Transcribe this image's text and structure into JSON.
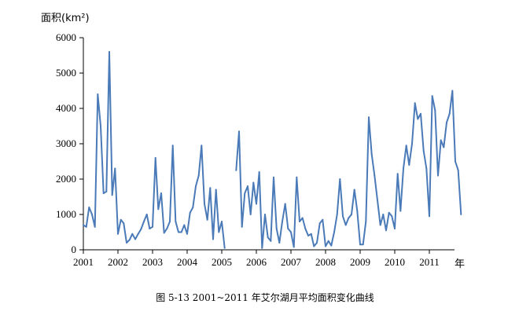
{
  "figure": {
    "caption": "图 5-13  2001~2011 年艾尔湖月平均面积变化曲线"
  },
  "chart_data": {
    "type": "line",
    "title": "",
    "ylabel": "面积(km²)",
    "xunit": "年",
    "ylim": [
      0,
      6000
    ],
    "xlim": [
      2001,
      2012
    ],
    "yticks": [
      0,
      1000,
      2000,
      3000,
      4000,
      5000,
      6000
    ],
    "xticks": [
      2001,
      2002,
      2003,
      2004,
      2005,
      2006,
      2007,
      2008,
      2009,
      2010,
      2011
    ],
    "grid": false,
    "legend": "none",
    "line_color": "#4a7ab8",
    "series": [
      {
        "segments": [
          [
            [
              2001.0,
              700
            ],
            [
              2001.083,
              650
            ],
            [
              2001.167,
              1200
            ],
            [
              2001.25,
              1000
            ],
            [
              2001.333,
              650
            ],
            [
              2001.417,
              4400
            ],
            [
              2001.5,
              3500
            ],
            [
              2001.583,
              1600
            ],
            [
              2001.667,
              1650
            ],
            [
              2001.75,
              5600
            ],
            [
              2001.833,
              1550
            ],
            [
              2001.917,
              2300
            ],
            [
              2002.0,
              450
            ],
            [
              2002.083,
              850
            ],
            [
              2002.167,
              750
            ],
            [
              2002.25,
              200
            ],
            [
              2002.333,
              280
            ],
            [
              2002.417,
              450
            ],
            [
              2002.5,
              300
            ],
            [
              2002.583,
              450
            ],
            [
              2002.667,
              580
            ],
            [
              2002.75,
              800
            ],
            [
              2002.833,
              1000
            ],
            [
              2002.917,
              600
            ],
            [
              2003.0,
              650
            ],
            [
              2003.083,
              2600
            ],
            [
              2003.167,
              1150
            ],
            [
              2003.25,
              1600
            ],
            [
              2003.333,
              480
            ],
            [
              2003.417,
              600
            ],
            [
              2003.5,
              800
            ],
            [
              2003.583,
              2950
            ],
            [
              2003.667,
              800
            ],
            [
              2003.75,
              500
            ],
            [
              2003.833,
              500
            ],
            [
              2003.917,
              700
            ],
            [
              2004.0,
              450
            ],
            [
              2004.083,
              1050
            ],
            [
              2004.167,
              1200
            ],
            [
              2004.25,
              1800
            ],
            [
              2004.333,
              2100
            ],
            [
              2004.417,
              2950
            ],
            [
              2004.5,
              1300
            ],
            [
              2004.583,
              850
            ],
            [
              2004.667,
              1750
            ],
            [
              2004.75,
              300
            ],
            [
              2004.833,
              1700
            ],
            [
              2004.917,
              500
            ],
            [
              2005.0,
              800
            ],
            [
              2005.083,
              50
            ]
          ],
          [
            [
              2005.417,
              2250
            ],
            [
              2005.5,
              3350
            ],
            [
              2005.583,
              650
            ],
            [
              2005.667,
              1600
            ],
            [
              2005.75,
              1800
            ],
            [
              2005.833,
              1000
            ],
            [
              2005.917,
              1900
            ],
            [
              2006.0,
              1300
            ],
            [
              2006.083,
              2200
            ],
            [
              2006.167,
              50
            ],
            [
              2006.25,
              1000
            ],
            [
              2006.333,
              350
            ],
            [
              2006.417,
              250
            ],
            [
              2006.5,
              2050
            ],
            [
              2006.583,
              600
            ],
            [
              2006.667,
              200
            ],
            [
              2006.75,
              800
            ],
            [
              2006.833,
              1300
            ],
            [
              2006.917,
              600
            ],
            [
              2007.0,
              500
            ],
            [
              2007.083,
              80
            ],
            [
              2007.167,
              2050
            ],
            [
              2007.25,
              800
            ],
            [
              2007.333,
              900
            ],
            [
              2007.417,
              600
            ],
            [
              2007.5,
              400
            ],
            [
              2007.583,
              450
            ],
            [
              2007.667,
              100
            ],
            [
              2007.75,
              200
            ],
            [
              2007.833,
              750
            ],
            [
              2007.917,
              850
            ],
            [
              2008.0,
              100
            ],
            [
              2008.083,
              250
            ],
            [
              2008.167,
              120
            ],
            [
              2008.25,
              500
            ],
            [
              2008.333,
              1000
            ],
            [
              2008.417,
              2000
            ],
            [
              2008.5,
              950
            ],
            [
              2008.583,
              700
            ],
            [
              2008.667,
              900
            ],
            [
              2008.75,
              1000
            ],
            [
              2008.833,
              1700
            ],
            [
              2008.917,
              1100
            ],
            [
              2009.0,
              150
            ],
            [
              2009.083,
              150
            ],
            [
              2009.167,
              800
            ],
            [
              2009.25,
              3750
            ],
            [
              2009.333,
              2700
            ],
            [
              2009.417,
              2100
            ],
            [
              2009.5,
              1400
            ],
            [
              2009.583,
              700
            ],
            [
              2009.667,
              1000
            ],
            [
              2009.75,
              550
            ],
            [
              2009.833,
              1050
            ],
            [
              2009.917,
              950
            ],
            [
              2010.0,
              600
            ],
            [
              2010.083,
              2150
            ],
            [
              2010.167,
              1100
            ],
            [
              2010.25,
              2300
            ],
            [
              2010.333,
              2950
            ],
            [
              2010.417,
              2400
            ],
            [
              2010.5,
              3000
            ],
            [
              2010.583,
              4150
            ],
            [
              2010.667,
              3700
            ],
            [
              2010.75,
              3850
            ],
            [
              2010.833,
              2800
            ],
            [
              2010.917,
              2300
            ],
            [
              2011.0,
              950
            ],
            [
              2011.083,
              4350
            ],
            [
              2011.167,
              3950
            ],
            [
              2011.25,
              2100
            ],
            [
              2011.333,
              3100
            ],
            [
              2011.417,
              2900
            ],
            [
              2011.5,
              3600
            ],
            [
              2011.583,
              3850
            ],
            [
              2011.667,
              4500
            ],
            [
              2011.75,
              2500
            ],
            [
              2011.833,
              2250
            ],
            [
              2011.917,
              1000
            ]
          ]
        ]
      }
    ]
  }
}
